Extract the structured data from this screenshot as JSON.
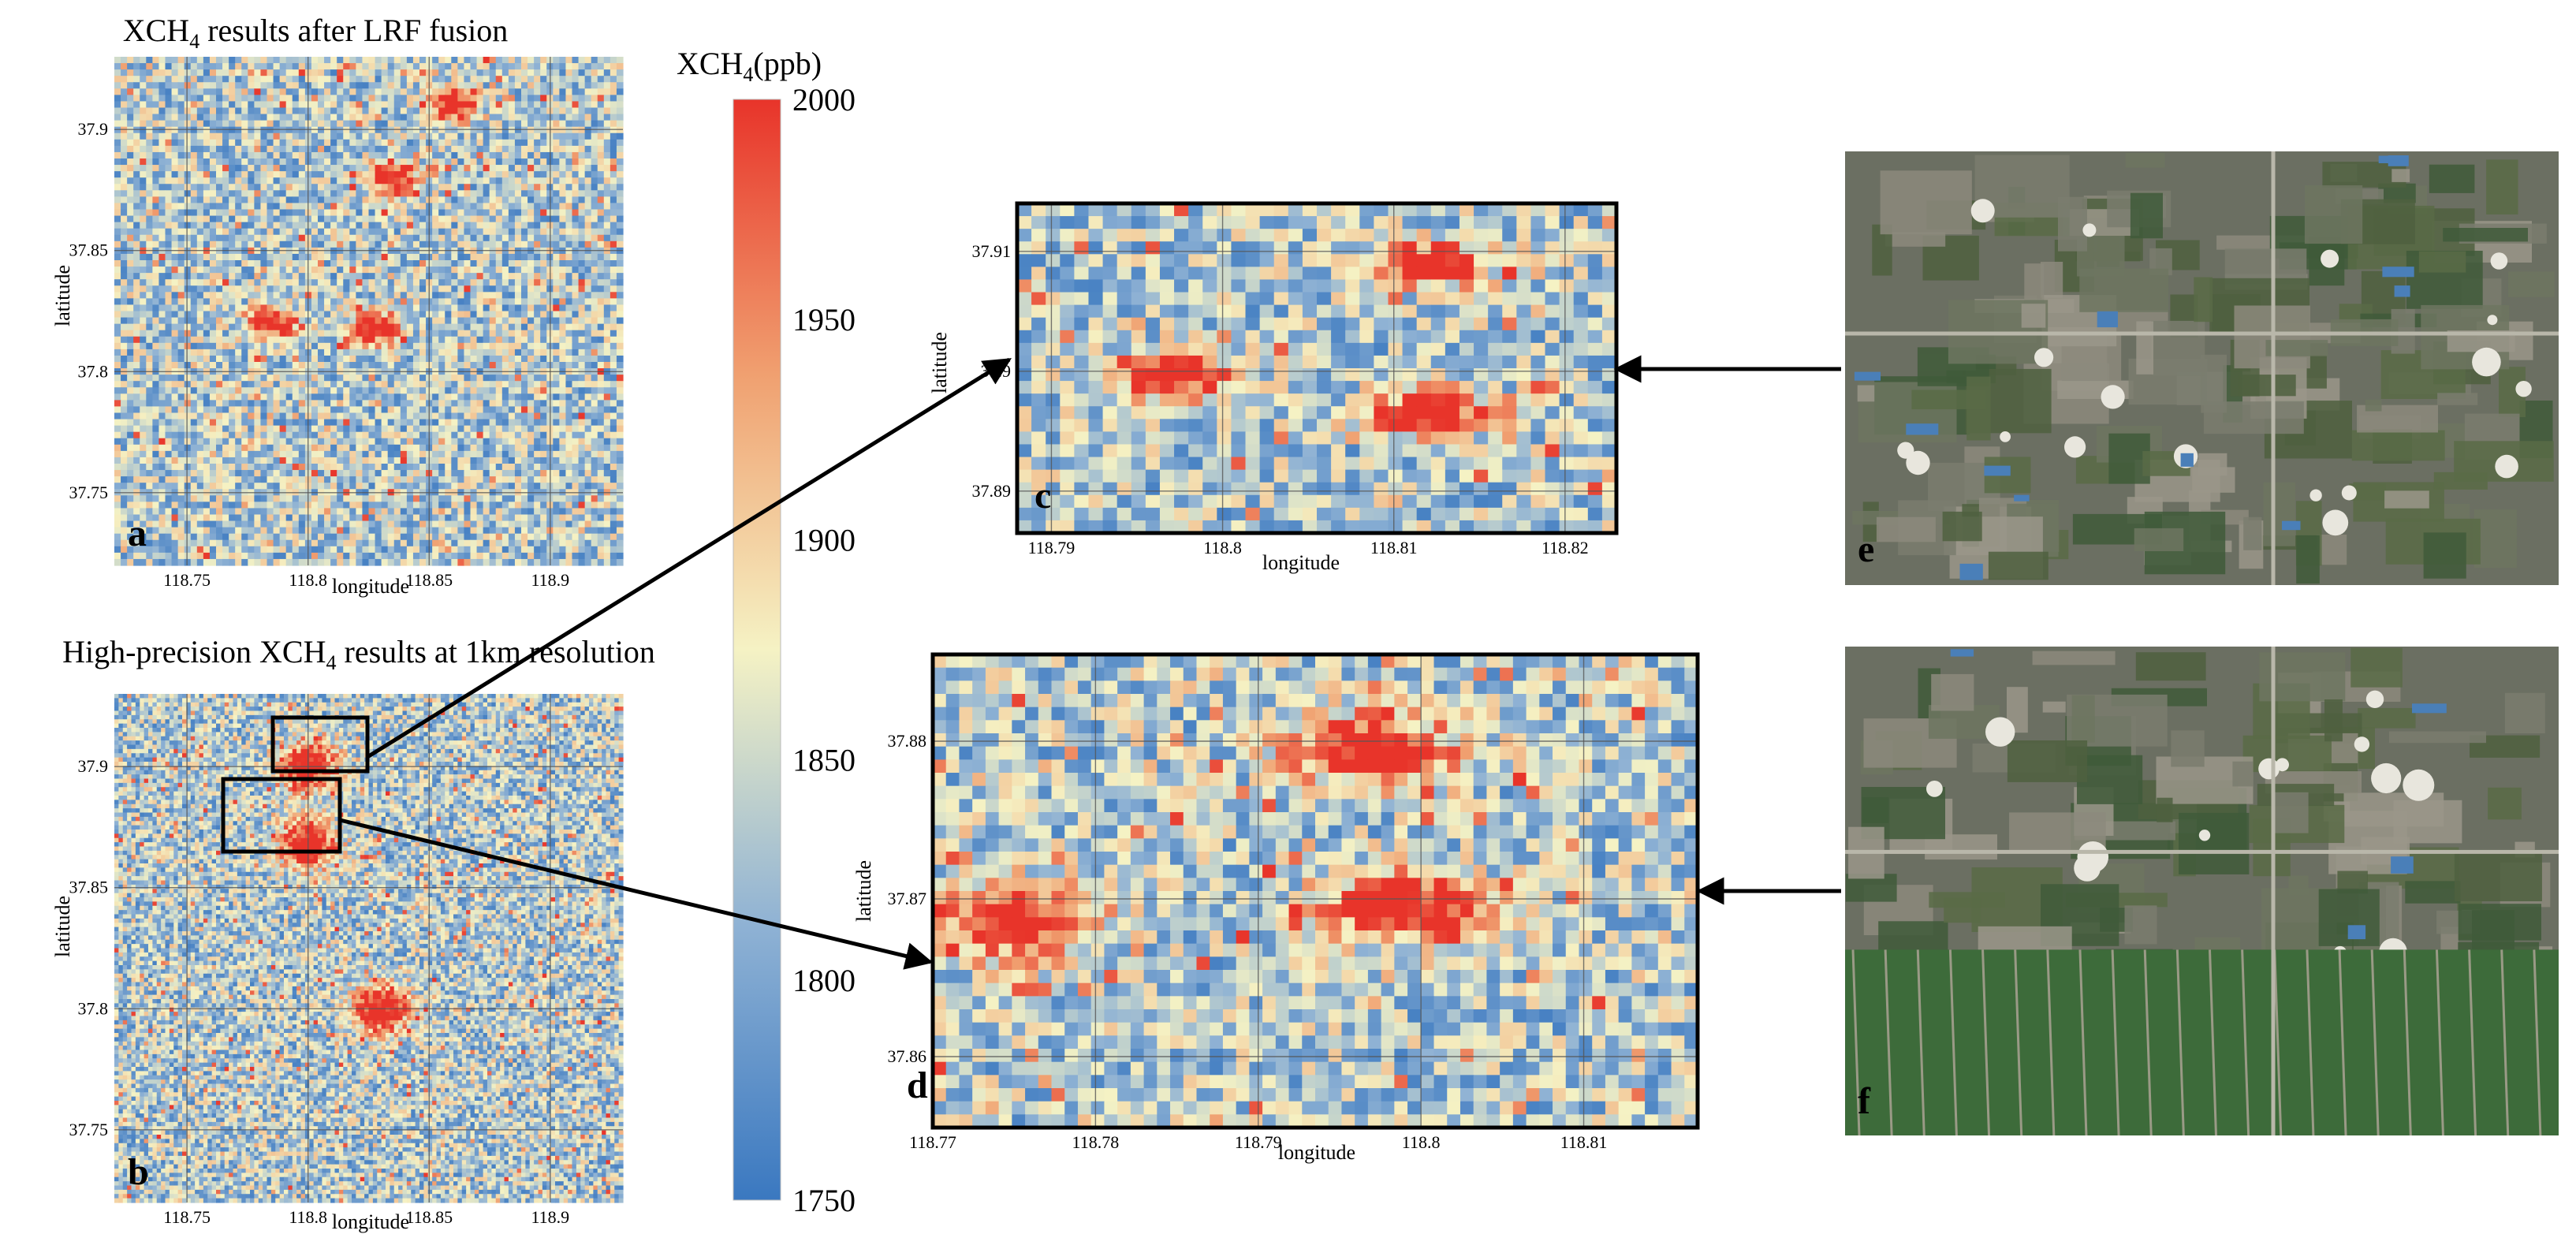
{
  "figure": {
    "panel_a_title": {
      "pre": "XCH",
      "sub": "4",
      "post": " results after LRF fusion"
    },
    "panel_b_title": {
      "pre": "High-precision XCH",
      "sub": "4",
      "post": " results at 1km resolution"
    },
    "colorbar_title": {
      "pre": "XCH",
      "sub": "4",
      "post": "(ppb)"
    },
    "colorbar_ticks": [
      "2000",
      "1950",
      "1900",
      "1850",
      "1800",
      "1750"
    ],
    "xlabel": "longitude",
    "ylabel": "latitude",
    "panel_letters": {
      "a": "a",
      "b": "b",
      "c": "c",
      "d": "d",
      "e": "e",
      "f": "f"
    },
    "colors": {
      "low": "#3a78c0",
      "mid_low": "#8fb2d4",
      "mid": "#f2f0c9",
      "mid_high": "#f0a070",
      "high": "#e8342a",
      "frame": "#000000",
      "grid": "#555555"
    }
  },
  "chart_data": [
    {
      "id": "a",
      "type": "heatmap",
      "title": "XCH4 results after LRF fusion",
      "xlabel": "longitude",
      "ylabel": "latitude",
      "xticks": [
        "118.75",
        "118.8",
        "118.85",
        "118.9"
      ],
      "yticks": [
        "37.9",
        "37.85",
        "37.8",
        "37.75"
      ],
      "color_range": [
        1750,
        2000
      ],
      "hotspots": [
        {
          "lon": 118.785,
          "lat": 37.82
        },
        {
          "lon": 118.828,
          "lat": 37.818
        },
        {
          "lon": 118.835,
          "lat": 37.88
        },
        {
          "lon": 118.86,
          "lat": 37.91
        }
      ]
    },
    {
      "id": "b",
      "type": "heatmap",
      "title": "High-precision XCH4 results at 1km resolution",
      "xlabel": "longitude",
      "ylabel": "latitude",
      "xticks": [
        "118.75",
        "118.8",
        "118.85",
        "118.9"
      ],
      "yticks": [
        "37.9",
        "37.85",
        "37.8",
        "37.75"
      ],
      "color_range": [
        1750,
        2000
      ],
      "zoom_boxes": [
        "c",
        "d"
      ],
      "hotspots": [
        {
          "lon": 118.8,
          "lat": 37.9
        },
        {
          "lon": 118.8,
          "lat": 37.868
        },
        {
          "lon": 118.83,
          "lat": 37.8
        }
      ]
    },
    {
      "id": "c",
      "type": "heatmap",
      "xlabel": "longitude",
      "ylabel": "latitude",
      "xticks": [
        "118.79",
        "118.8",
        "118.81",
        "118.82"
      ],
      "yticks": [
        "37.91",
        "37.9",
        "37.89"
      ],
      "color_range": [
        1750,
        2000
      ],
      "hotspots": [
        {
          "lon": 118.797,
          "lat": 37.8997
        },
        {
          "lon": 118.812,
          "lat": 37.909
        },
        {
          "lon": 118.812,
          "lat": 37.8965
        }
      ]
    },
    {
      "id": "d",
      "type": "heatmap",
      "xlabel": "longitude",
      "ylabel": "latitude",
      "xticks": [
        "118.77",
        "118.78",
        "118.79",
        "118.8",
        "118.81"
      ],
      "yticks": [
        "37.88",
        "37.87",
        "37.86"
      ],
      "color_range": [
        1750,
        2000
      ],
      "hotspots": [
        {
          "lon": 118.775,
          "lat": 37.8685
        },
        {
          "lon": 118.799,
          "lat": 37.8695
        },
        {
          "lon": 118.797,
          "lat": 37.8795
        }
      ]
    },
    {
      "id": "colorbar",
      "type": "heatmap",
      "title": "XCH4(ppb)",
      "ticks": [
        2000,
        1950,
        1900,
        1850,
        1800,
        1750
      ],
      "range": [
        1750,
        2000
      ]
    }
  ]
}
